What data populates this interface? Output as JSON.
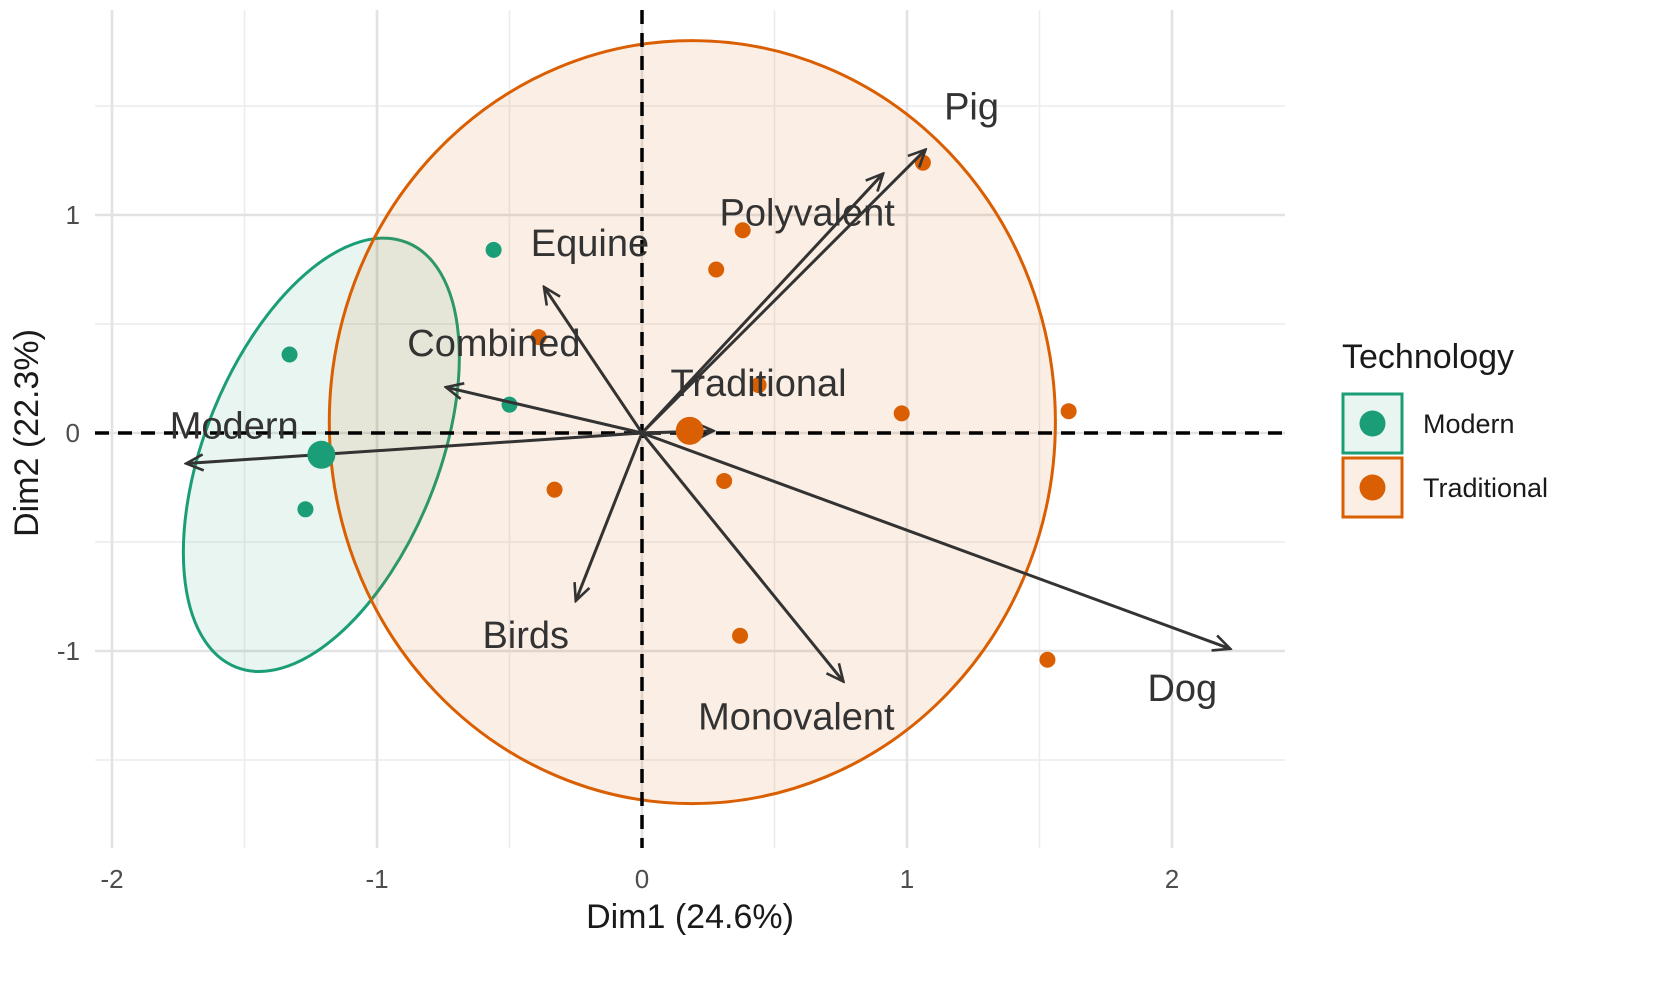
{
  "chart_data": {
    "type": "scatter",
    "subtype": "pca-biplot",
    "xlabel": "Dim1 (24.6%)",
    "ylabel": "Dim2 (22.3%)",
    "xlim": [
      -2.05,
      2.4
    ],
    "ylim": [
      -1.87,
      1.97
    ],
    "x_ticks": [
      -2,
      -1,
      0,
      1,
      2
    ],
    "y_ticks": [
      -1,
      0,
      1
    ],
    "x_tick_labels": [
      "-2",
      "-1",
      "0",
      "1",
      "2"
    ],
    "y_tick_labels": [
      "-1",
      "0",
      "1"
    ],
    "grid": true,
    "reference_lines": {
      "x": 0,
      "y": 0,
      "style": "dashed"
    },
    "legend": {
      "title": "Technology",
      "position": "right",
      "entries": [
        {
          "label": "Modern",
          "color": "#1b9e77"
        },
        {
          "label": "Traditional",
          "color": "#d95f02"
        }
      ]
    },
    "groups": [
      {
        "name": "Modern",
        "color": "#1b9e77",
        "points": [
          {
            "x": -0.56,
            "y": 0.84
          },
          {
            "x": -1.33,
            "y": 0.36
          },
          {
            "x": -0.5,
            "y": 0.13
          },
          {
            "x": -1.27,
            "y": -0.35
          }
        ],
        "centroid": {
          "x": -1.21,
          "y": -0.1
        },
        "ellipse": {
          "cx": -1.21,
          "cy": -0.1,
          "rx": 0.44,
          "ry": 1.05,
          "angle_deg": 22
        }
      },
      {
        "name": "Traditional",
        "color": "#d95f02",
        "points": [
          {
            "x": 1.06,
            "y": 1.24
          },
          {
            "x": 0.38,
            "y": 0.93
          },
          {
            "x": 0.28,
            "y": 0.75
          },
          {
            "x": -0.39,
            "y": 0.44
          },
          {
            "x": 0.44,
            "y": 0.22
          },
          {
            "x": 0.98,
            "y": 0.09
          },
          {
            "x": 1.61,
            "y": 0.1
          },
          {
            "x": 0.31,
            "y": -0.22
          },
          {
            "x": -0.33,
            "y": -0.26
          },
          {
            "x": 0.37,
            "y": -0.93
          },
          {
            "x": 1.53,
            "y": -1.04
          }
        ],
        "centroid": {
          "x": 0.18,
          "y": 0.01
        },
        "ellipse": {
          "cx": 0.19,
          "cy": 0.05,
          "rx": 1.37,
          "ry": 1.75,
          "angle_deg": 0
        }
      }
    ],
    "variables": [
      {
        "name": "Pig",
        "x": 1.07,
        "y": 1.3
      },
      {
        "name": "Polyvalent",
        "x": 0.91,
        "y": 1.19
      },
      {
        "name": "Equine",
        "x": -0.37,
        "y": 0.67
      },
      {
        "name": "Combined",
        "x": -0.74,
        "y": 0.21
      },
      {
        "name": "Traditional",
        "x": 0.27,
        "y": 0.01
      },
      {
        "name": "Modern",
        "x": -1.72,
        "y": -0.14
      },
      {
        "name": "Birds",
        "x": -0.25,
        "y": -0.77
      },
      {
        "name": "Monovalent",
        "x": 0.76,
        "y": -1.14
      },
      {
        "name": "Dog",
        "x": 2.22,
        "y": -0.99
      }
    ]
  }
}
